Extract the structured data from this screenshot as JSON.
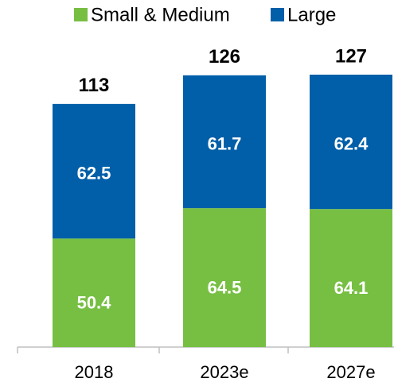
{
  "chart_data": {
    "type": "stacked-bar",
    "categories": [
      "2018",
      "2023e",
      "2027e"
    ],
    "series": [
      {
        "name": "Small & Medium",
        "color": "#77bf43",
        "values": [
          50.4,
          64.5,
          64.1
        ]
      },
      {
        "name": "Large",
        "color": "#005fa8",
        "values": [
          62.5,
          61.7,
          62.4
        ]
      }
    ],
    "totals": [
      113,
      126,
      127
    ]
  }
}
